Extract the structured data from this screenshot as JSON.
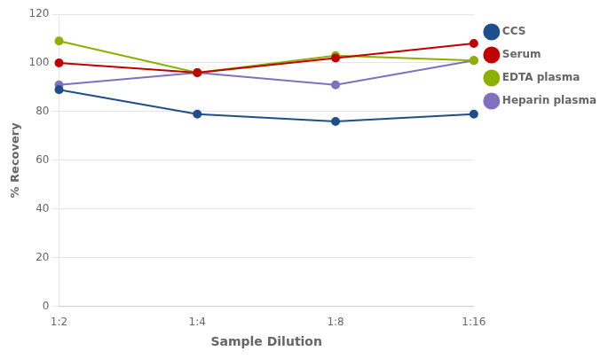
{
  "chart_data": {
    "type": "line",
    "xlabel": "Sample Dilution",
    "ylabel": "% Recovery",
    "categories": [
      "1:2",
      "1:4",
      "1:8",
      "1:16"
    ],
    "series": [
      {
        "name": "CCS",
        "color": "#1f4e8c",
        "values": [
          89,
          79,
          76,
          79
        ]
      },
      {
        "name": "Serum",
        "color": "#c00000",
        "values": [
          100,
          96,
          102,
          108
        ]
      },
      {
        "name": "EDTA plasma",
        "color": "#8db000",
        "values": [
          109,
          96,
          103,
          101
        ]
      },
      {
        "name": "Heparin plasma",
        "color": "#8070c0",
        "values": [
          91,
          96,
          91,
          101
        ]
      }
    ],
    "ylim": [
      0,
      120
    ],
    "yticks": [
      0,
      20,
      40,
      60,
      80,
      100,
      120
    ],
    "grid": true,
    "legend": "right",
    "marker": "circle"
  }
}
